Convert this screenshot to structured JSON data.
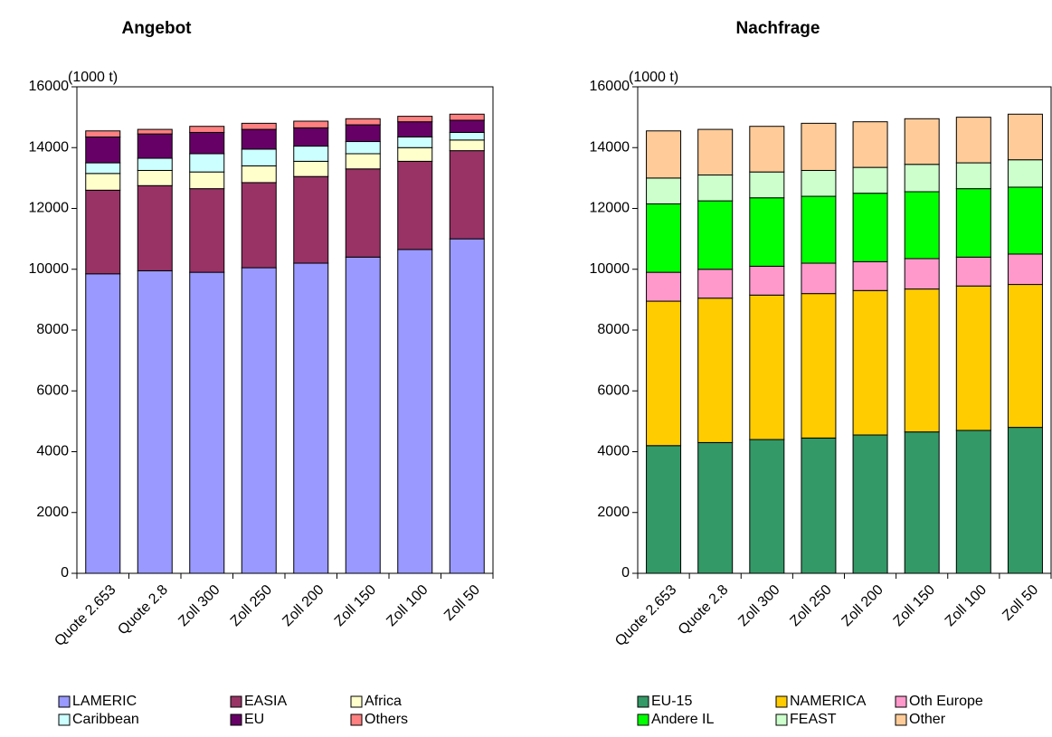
{
  "chart_data": [
    {
      "type": "bar",
      "stacked": true,
      "title": "Angebot",
      "ylabel": "(1000 t)",
      "categories": [
        "Quote 2.653",
        "Quote 2.8",
        "Zoll 300",
        "Zoll 250",
        "Zoll 200",
        "Zoll 150",
        "Zoll 100",
        "Zoll 50"
      ],
      "ylim": [
        0,
        16000
      ],
      "yticks": [
        0,
        2000,
        4000,
        6000,
        8000,
        10000,
        12000,
        14000,
        16000
      ],
      "series": [
        {
          "name": "LAMERIC",
          "color": "#9999ff",
          "values": [
            9850,
            9950,
            9900,
            10050,
            10200,
            10400,
            10650,
            11000
          ]
        },
        {
          "name": "EASIA",
          "color": "#993366",
          "values": [
            2750,
            2800,
            2750,
            2800,
            2850,
            2900,
            2900,
            2900
          ]
        },
        {
          "name": "Africa",
          "color": "#ffffcc",
          "values": [
            550,
            500,
            550,
            550,
            500,
            500,
            450,
            350
          ]
        },
        {
          "name": "Caribbean",
          "color": "#ccffff",
          "values": [
            350,
            400,
            600,
            550,
            500,
            400,
            350,
            250
          ]
        },
        {
          "name": "EU",
          "color": "#660066",
          "values": [
            850,
            800,
            700,
            650,
            600,
            550,
            500,
            400
          ]
        },
        {
          "name": "Others",
          "color": "#ff8080",
          "values": [
            200,
            150,
            200,
            200,
            220,
            200,
            180,
            200
          ]
        }
      ]
    },
    {
      "type": "bar",
      "stacked": true,
      "title": "Nachfrage",
      "ylabel": "(1000 t)",
      "categories": [
        "Quote 2.653",
        "Quote 2.8",
        "Zoll 300",
        "Zoll 250",
        "Zoll 200",
        "Zoll 150",
        "Zoll 100",
        "Zoll 50"
      ],
      "ylim": [
        0,
        16000
      ],
      "yticks": [
        0,
        2000,
        4000,
        6000,
        8000,
        10000,
        12000,
        14000,
        16000
      ],
      "series": [
        {
          "name": "EU-15",
          "color": "#339966",
          "values": [
            4200,
            4300,
            4400,
            4450,
            4550,
            4650,
            4700,
            4800
          ]
        },
        {
          "name": "NAMERICA",
          "color": "#ffcc00",
          "values": [
            4750,
            4750,
            4750,
            4750,
            4750,
            4700,
            4750,
            4700
          ]
        },
        {
          "name": "Oth Europe",
          "color": "#ff99cc",
          "values": [
            950,
            950,
            950,
            1000,
            950,
            1000,
            950,
            1000
          ]
        },
        {
          "name": "Andere IL",
          "color": "#00ff00",
          "values": [
            2250,
            2250,
            2250,
            2200,
            2250,
            2200,
            2250,
            2200
          ]
        },
        {
          "name": "FEAST",
          "color": "#ccffcc",
          "values": [
            850,
            850,
            850,
            850,
            850,
            900,
            850,
            900
          ]
        },
        {
          "name": "Other",
          "color": "#ffcc99",
          "values": [
            1550,
            1500,
            1500,
            1550,
            1500,
            1500,
            1500,
            1500
          ]
        }
      ]
    }
  ]
}
